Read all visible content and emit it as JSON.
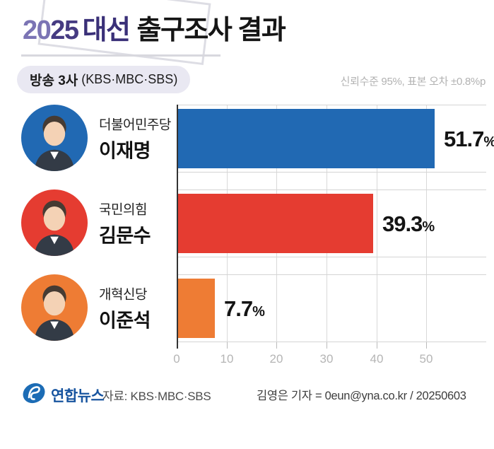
{
  "header": {
    "title_year_a": "20",
    "title_year_b": "25",
    "title_election": "대선",
    "title_rest": "출구조사 결과",
    "badge_bold": "방송 3사",
    "badge_paren": "(KBS·MBC·SBS)",
    "note": "신뢰수준 95%, 표본 오차 ±0.8%p"
  },
  "chart_data": {
    "type": "bar",
    "orientation": "horizontal",
    "title": "2025 대선 출구조사 결과",
    "subtitle": "방송 3사 (KBS·MBC·SBS)",
    "note": "신뢰수준 95%, 표본 오차 ±0.8%p",
    "categories": [
      "더불어민주당 이재명",
      "국민의힘 김문수",
      "개혁신당 이준석"
    ],
    "values": [
      51.7,
      39.3,
      7.7
    ],
    "value_labels": [
      "51.7",
      "39.3",
      "7.7"
    ],
    "unit": "%",
    "bar_colors": [
      "#2169b3",
      "#e53c31",
      "#ee7c34"
    ],
    "x_ticks": [
      0,
      10,
      20,
      30,
      40,
      50
    ],
    "xlim": [
      0,
      62
    ],
    "grid": "vertical",
    "legend": "none"
  },
  "candidates": [
    {
      "party": "더불어민주당",
      "name": "이재명",
      "value": "51.7",
      "color": "#2169b3"
    },
    {
      "party": "국민의힘",
      "name": "김문수",
      "value": "39.3",
      "color": "#e53c31"
    },
    {
      "party": "개혁신당",
      "name": "이준석",
      "value": "7.7",
      "color": "#ee7c34"
    }
  ],
  "axis": {
    "tick_labels": [
      "0",
      "10",
      "20",
      "30",
      "40",
      "50"
    ]
  },
  "footer": {
    "agency": "연합뉴스",
    "source": "자료: KBS·MBC·SBS",
    "byline": "김영은 기자 = 0eun@yna.co.kr / 20250603"
  }
}
